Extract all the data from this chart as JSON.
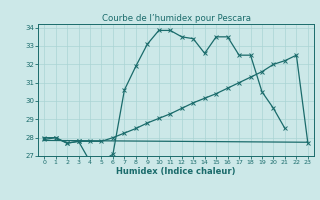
{
  "title": "Courbe de l’humidex pour Pescara",
  "xlabel": "Humidex (Indice chaleur)",
  "bg_color": "#cce8e8",
  "grid_color": "#aad4d4",
  "line_color": "#1a6b6b",
  "xlim": [
    -0.5,
    23.5
  ],
  "ylim": [
    27,
    34.2
  ],
  "yticks": [
    27,
    28,
    29,
    30,
    31,
    32,
    33,
    34
  ],
  "xticks": [
    0,
    1,
    2,
    3,
    4,
    5,
    6,
    7,
    8,
    9,
    10,
    11,
    12,
    13,
    14,
    15,
    16,
    17,
    18,
    19,
    20,
    21,
    22,
    23
  ],
  "line1_x": [
    0,
    1,
    2,
    3,
    4,
    5,
    6,
    7,
    8,
    9,
    10,
    11,
    12,
    13,
    14,
    15,
    16,
    17,
    18,
    19,
    20,
    21
  ],
  "line1_y": [
    28.0,
    28.0,
    27.7,
    27.8,
    26.7,
    26.7,
    27.1,
    30.6,
    31.9,
    33.1,
    33.85,
    33.85,
    33.5,
    33.4,
    32.6,
    33.5,
    33.5,
    32.5,
    32.5,
    30.5,
    29.6,
    28.5
  ],
  "line2_x": [
    0,
    1,
    2,
    3,
    4,
    5,
    6,
    7,
    8,
    9,
    10,
    11,
    12,
    13,
    14,
    15,
    16,
    17,
    18,
    19,
    20,
    21,
    22,
    23
  ],
  "line2_y": [
    27.9,
    28.0,
    27.7,
    27.8,
    27.8,
    27.8,
    28.0,
    28.25,
    28.5,
    28.8,
    29.05,
    29.3,
    29.6,
    29.9,
    30.15,
    30.4,
    30.7,
    31.0,
    31.3,
    31.6,
    32.0,
    32.2,
    32.5,
    27.7
  ],
  "line3_x": [
    0,
    23
  ],
  "line3_y": [
    27.85,
    27.75
  ]
}
